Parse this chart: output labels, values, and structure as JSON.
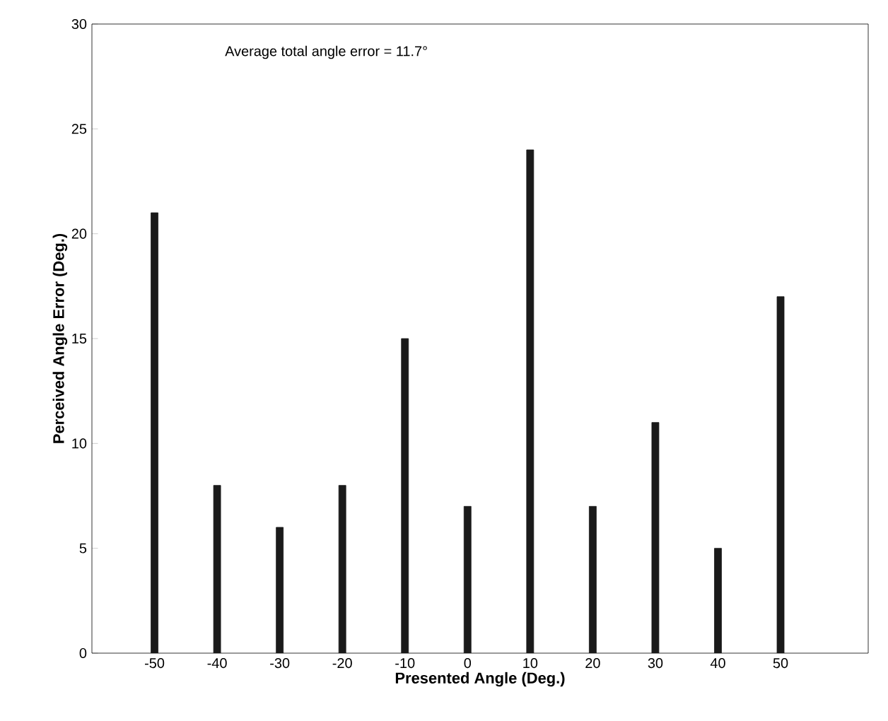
{
  "chart_data": {
    "type": "bar",
    "xlabel": "Presented Angle (Deg.)",
    "ylabel": "Perceived Angle Error (Deg.)",
    "x": [
      -50,
      -40,
      -30,
      -20,
      -10,
      0,
      10,
      20,
      30,
      40,
      50
    ],
    "values": [
      21,
      8,
      6,
      8,
      15,
      7,
      24,
      7,
      11,
      5,
      17
    ],
    "color": "#1a1a1a",
    "xlim": [
      -60,
      64
    ],
    "ylim": [
      0,
      30
    ],
    "xticks": [
      -50,
      -40,
      -30,
      -20,
      -10,
      0,
      10,
      20,
      30,
      40,
      50
    ],
    "yticks": [
      0,
      5,
      10,
      15,
      20,
      25,
      30
    ],
    "annotations": [
      "Average total angle error = 11.7°"
    ]
  }
}
